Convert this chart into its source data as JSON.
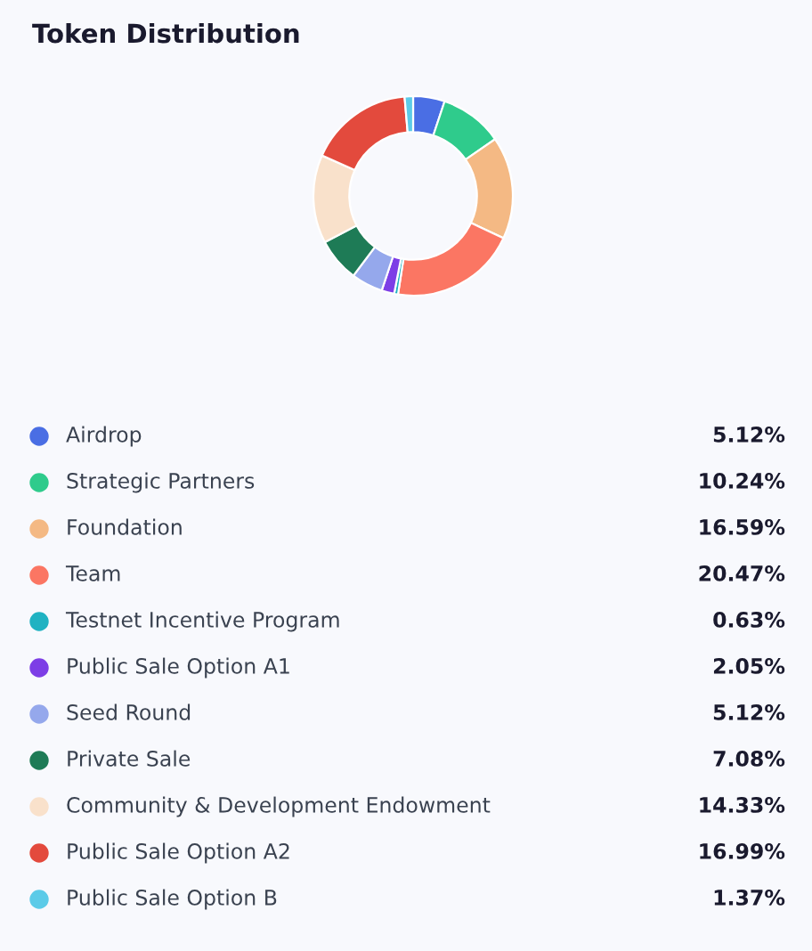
{
  "chart_data": {
    "type": "donut",
    "title": "Token Distribution",
    "categories": [
      "Airdrop",
      "Strategic Partners",
      "Foundation",
      "Team",
      "Testnet Incentive Program",
      "Public Sale Option A1",
      "Seed Round",
      "Private Sale",
      "Community & Development Endowment",
      "Public Sale Option A2",
      "Public Sale Option B"
    ],
    "values": [
      5.12,
      10.24,
      16.59,
      20.47,
      0.63,
      2.05,
      5.12,
      7.08,
      14.33,
      16.99,
      1.37
    ],
    "value_labels": [
      "5.12%",
      "10.24%",
      "16.59%",
      "20.47%",
      "0.63%",
      "2.05%",
      "5.12%",
      "7.08%",
      "14.33%",
      "16.99%",
      "1.37%"
    ],
    "colors": [
      "#4a6ee4",
      "#2fcb8c",
      "#f4b984",
      "#fb7663",
      "#20b2c2",
      "#7d3ee6",
      "#95a8ec",
      "#1e7b56",
      "#f9e1cb",
      "#e34a3d",
      "#5ccbe8"
    ],
    "legend": "bottom"
  }
}
